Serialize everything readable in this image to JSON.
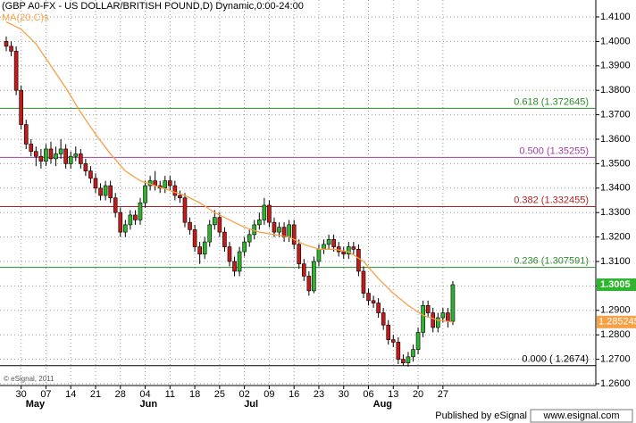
{
  "chart_data": {
    "type": "candlestick",
    "title": "(GBP A0-FX - US DOLLAR/BRITISH POUND,D) Dynamic,0:00-24:00",
    "watermark": "© eSignal, 2011",
    "footer": {
      "published": "Published by eSignal",
      "site": "www.esignal.com"
    },
    "categories": [
      null,
      null,
      null,
      "30",
      null,
      null,
      null,
      null,
      "07",
      null,
      null,
      null,
      null,
      "14",
      null,
      null,
      null,
      null,
      "21",
      null,
      null,
      null,
      null,
      "28",
      null,
      null,
      null,
      null,
      "04",
      null,
      null,
      null,
      null,
      "11",
      null,
      null,
      null,
      null,
      "18",
      null,
      null,
      null,
      null,
      "25",
      null,
      null,
      null,
      null,
      "02",
      null,
      null,
      null,
      null,
      "09",
      null,
      null,
      null,
      null,
      "16",
      null,
      null,
      null,
      null,
      "23",
      null,
      null,
      null,
      null,
      "30",
      null,
      null,
      null,
      null,
      "06",
      null,
      null,
      null,
      null,
      "13",
      null,
      null,
      null,
      null,
      "20",
      null,
      null,
      null,
      null,
      "27",
      null,
      null
    ],
    "month_labels": [
      null,
      null,
      null,
      null,
      null,
      "May",
      null,
      null,
      null,
      null,
      null,
      null,
      null,
      null,
      null,
      null,
      null,
      null,
      null,
      null,
      null,
      null,
      null,
      null,
      null,
      null,
      null,
      null,
      "Jun",
      null,
      null,
      null,
      null,
      null,
      null,
      null,
      null,
      null,
      null,
      null,
      null,
      null,
      null,
      null,
      null,
      null,
      null,
      null,
      null,
      "Jul",
      null,
      null,
      null,
      null,
      null,
      null,
      null,
      null,
      null,
      null,
      null,
      null,
      null,
      null,
      null,
      null,
      null,
      null,
      null,
      null,
      null,
      null,
      null,
      null,
      null,
      "Aug",
      null,
      null,
      null,
      null,
      null,
      null,
      null,
      null,
      null,
      null,
      null,
      null,
      null,
      null,
      null
    ],
    "ohlc": {
      "up_color": "#2db52d",
      "down_color": "#c41a1a",
      "open": [
        1.4,
        1.398,
        1.396,
        1.38,
        1.366,
        1.358,
        1.355,
        1.353,
        1.351,
        1.356,
        1.352,
        1.354,
        1.356,
        1.35,
        1.353,
        1.354,
        1.35,
        1.347,
        1.344,
        1.34,
        1.337,
        1.341,
        1.336,
        1.33,
        1.322,
        1.325,
        1.329,
        1.327,
        1.334,
        1.341,
        1.343,
        1.341,
        1.34,
        1.343,
        1.341,
        1.337,
        1.336,
        1.326,
        1.323,
        1.316,
        1.313,
        1.318,
        1.325,
        1.328,
        1.322,
        1.316,
        1.31,
        1.306,
        1.314,
        1.318,
        1.321,
        1.325,
        1.327,
        1.333,
        1.326,
        1.322,
        1.324,
        1.32,
        1.325,
        1.317,
        1.309,
        1.304,
        1.298,
        1.31,
        1.315,
        1.317,
        1.319,
        1.316,
        1.314,
        1.313,
        1.316,
        1.315,
        1.306,
        1.297,
        1.294,
        1.293,
        1.289,
        1.284,
        1.278,
        1.277,
        1.27,
        1.2685,
        1.271,
        1.274,
        1.281,
        1.292,
        1.289,
        1.283,
        1.287,
        1.289,
        1.2855
      ],
      "high": [
        1.402,
        1.4,
        1.398,
        1.382,
        1.368,
        1.36,
        1.357,
        1.356,
        1.358,
        1.359,
        1.357,
        1.36,
        1.358,
        1.355,
        1.357,
        1.356,
        1.352,
        1.349,
        1.346,
        1.342,
        1.343,
        1.343,
        1.338,
        1.332,
        1.327,
        1.331,
        1.331,
        1.336,
        1.343,
        1.345,
        1.347,
        1.343,
        1.345,
        1.345,
        1.343,
        1.339,
        1.338,
        1.328,
        1.325,
        1.318,
        1.32,
        1.327,
        1.331,
        1.33,
        1.324,
        1.318,
        1.312,
        1.316,
        1.32,
        1.323,
        1.327,
        1.33,
        1.336,
        1.335,
        1.328,
        1.326,
        1.326,
        1.327,
        1.327,
        1.319,
        1.311,
        1.306,
        1.312,
        1.317,
        1.319,
        1.321,
        1.321,
        1.318,
        1.316,
        1.318,
        1.318,
        1.317,
        1.308,
        1.299,
        1.296,
        1.295,
        1.291,
        1.286,
        1.28,
        1.279,
        1.272,
        1.273,
        1.276,
        1.283,
        1.294,
        1.294,
        1.291,
        1.289,
        1.291,
        1.291,
        1.302
      ],
      "low": [
        1.396,
        1.394,
        1.378,
        1.364,
        1.356,
        1.353,
        1.349,
        1.348,
        1.349,
        1.35,
        1.349,
        1.352,
        1.348,
        1.348,
        1.351,
        1.348,
        1.345,
        1.342,
        1.338,
        1.335,
        1.335,
        1.334,
        1.328,
        1.32,
        1.32,
        1.323,
        1.325,
        1.325,
        1.332,
        1.339,
        1.339,
        1.338,
        1.338,
        1.339,
        1.335,
        1.334,
        1.324,
        1.321,
        1.314,
        1.309,
        1.311,
        1.316,
        1.323,
        1.32,
        1.314,
        1.308,
        1.304,
        1.304,
        1.312,
        1.316,
        1.319,
        1.323,
        1.325,
        1.324,
        1.32,
        1.32,
        1.318,
        1.318,
        1.315,
        1.307,
        1.302,
        1.296,
        1.297,
        1.308,
        1.313,
        1.315,
        1.314,
        1.312,
        1.311,
        1.311,
        1.313,
        1.304,
        1.295,
        1.292,
        1.291,
        1.287,
        1.282,
        1.276,
        1.275,
        1.268,
        1.2674,
        1.267,
        1.269,
        1.272,
        1.279,
        1.287,
        1.281,
        1.281,
        1.285,
        1.283,
        1.284
      ],
      "close": [
        1.398,
        1.396,
        1.38,
        1.366,
        1.358,
        1.355,
        1.353,
        1.351,
        1.356,
        1.352,
        1.354,
        1.356,
        1.35,
        1.353,
        1.354,
        1.35,
        1.347,
        1.344,
        1.34,
        1.337,
        1.341,
        1.336,
        1.33,
        1.322,
        1.325,
        1.329,
        1.327,
        1.334,
        1.341,
        1.343,
        1.341,
        1.34,
        1.343,
        1.341,
        1.337,
        1.336,
        1.326,
        1.323,
        1.316,
        1.313,
        1.318,
        1.325,
        1.328,
        1.322,
        1.316,
        1.31,
        1.306,
        1.314,
        1.318,
        1.321,
        1.325,
        1.327,
        1.333,
        1.326,
        1.322,
        1.324,
        1.32,
        1.325,
        1.317,
        1.309,
        1.304,
        1.298,
        1.31,
        1.315,
        1.317,
        1.319,
        1.316,
        1.314,
        1.313,
        1.316,
        1.315,
        1.306,
        1.297,
        1.294,
        1.293,
        1.289,
        1.284,
        1.278,
        1.277,
        1.27,
        1.2685,
        1.271,
        1.274,
        1.281,
        1.292,
        1.289,
        1.283,
        1.287,
        1.289,
        1.2855,
        1.3005
      ]
    },
    "ma": {
      "name": "MA(20,C)s",
      "color": "#f7a045",
      "values": [
        1.408,
        1.407,
        1.406,
        1.405,
        1.403,
        1.401,
        1.399,
        1.396,
        1.393,
        1.39,
        1.387,
        1.384,
        1.381,
        1.3777,
        1.3743,
        1.371,
        1.368,
        1.365,
        1.362,
        1.3593,
        1.3567,
        1.354,
        1.3517,
        1.3493,
        1.347,
        1.3457,
        1.3443,
        1.343,
        1.3423,
        1.3417,
        1.341,
        1.3403,
        1.3397,
        1.339,
        1.3383,
        1.3377,
        1.337,
        1.336,
        1.335,
        1.334,
        1.3327,
        1.3313,
        1.33,
        1.329,
        1.328,
        1.327,
        1.326,
        1.325,
        1.324,
        1.3233,
        1.3227,
        1.322,
        1.3217,
        1.3213,
        1.321,
        1.3207,
        1.3203,
        1.32,
        1.319,
        1.318,
        1.317,
        1.3163,
        1.3157,
        1.315,
        1.315,
        1.315,
        1.315,
        1.3147,
        1.3143,
        1.314,
        1.3127,
        1.3113,
        1.31,
        1.3077,
        1.3053,
        1.303,
        1.301,
        1.299,
        1.297,
        1.2953,
        1.2937,
        1.292,
        1.2907,
        1.2893,
        1.288,
        1.2873,
        1.2867,
        1.286,
        1.2857,
        1.2855,
        1.285245
      ]
    },
    "levels": [
      {
        "label": "0.618 (1.372645)",
        "value": 1.372645,
        "color": "#2e8b2e"
      },
      {
        "label": "0.500 (1.35255)",
        "value": 1.35255,
        "color": "#a040a8"
      },
      {
        "label": "0.382 (1.332455)",
        "value": 1.332455,
        "color": "#b02222"
      },
      {
        "label": "0.236 (1.307591)",
        "value": 1.307591,
        "color": "#2e8b2e"
      },
      {
        "label": "0.000 ( 1.2674)",
        "value": 1.2674,
        "color": "#000000"
      }
    ],
    "ylim": [
      1.26,
      1.41
    ],
    "yticks": [
      {
        "value": 1.26,
        "label": "1.2600"
      },
      {
        "value": 1.27,
        "label": "1.2700"
      },
      {
        "value": 1.28,
        "label": "1.2800"
      },
      {
        "value": 1.29,
        "label": "1.2900"
      },
      {
        "value": 1.3,
        "label": "1.3000"
      },
      {
        "value": 1.31,
        "label": "1.3100"
      },
      {
        "value": 1.32,
        "label": "1.3200"
      },
      {
        "value": 1.33,
        "label": "1.3300"
      },
      {
        "value": 1.34,
        "label": "1.3400"
      },
      {
        "value": 1.35,
        "label": "1.3500"
      },
      {
        "value": 1.36,
        "label": "1.3600"
      },
      {
        "value": 1.37,
        "label": "1.3700"
      },
      {
        "value": 1.38,
        "label": "1.3800"
      },
      {
        "value": 1.39,
        "label": "1.3900"
      },
      {
        "value": 1.4,
        "label": "1.4000"
      },
      {
        "value": 1.41,
        "label": "1.4100"
      }
    ],
    "grid": true
  }
}
